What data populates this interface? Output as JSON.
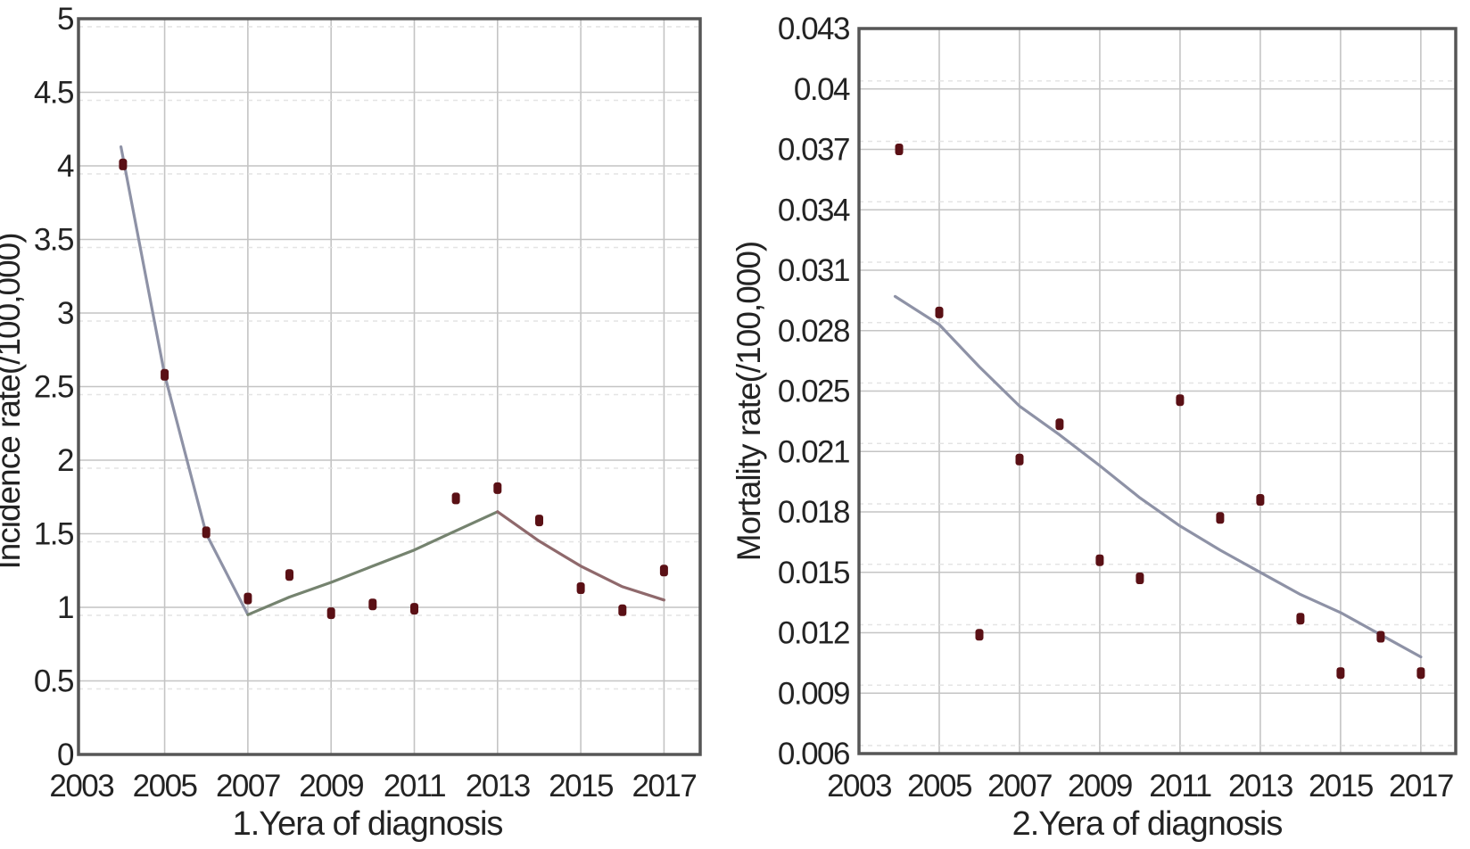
{
  "page": {
    "background": "#ffffff"
  },
  "theme": {
    "point_color": "#5a1015",
    "axis_color": "#565656",
    "grid_color": "#c4c4c4",
    "grid_echo_color": "#e4e4e4",
    "text_color": "#232323",
    "trend_blue": "#8e92a6",
    "trend_green": "#75836f",
    "trend_red": "#8f696c"
  },
  "chart_data": [
    {
      "id": "incidence",
      "type": "scatter",
      "title": "",
      "xlabel": "1.Yera of diagnosis",
      "ylabel": "Incidence rate(/100,000)",
      "x_ticks": [
        2003,
        2005,
        2007,
        2009,
        2011,
        2013,
        2015,
        2017
      ],
      "x_tick_labels": [
        "2003",
        "2005",
        "2007",
        "2009",
        "2011",
        "2013",
        "2015",
        "2017"
      ],
      "y_ticks": [
        0,
        0.5,
        1,
        1.5,
        2,
        2.5,
        3,
        3.5,
        4,
        4.5,
        5
      ],
      "y_tick_labels": [
        "0",
        "0.5",
        "1",
        "1.5",
        "2",
        "2.5",
        "3",
        "3.5",
        "4",
        "4.5",
        "5"
      ],
      "xlim": [
        2002.93,
        2017.87
      ],
      "ylim": [
        0,
        5
      ],
      "y_scale": "linear",
      "grid": true,
      "legend": null,
      "x": [
        2004,
        2005,
        2006,
        2007,
        2008,
        2009,
        2010,
        2011,
        2012,
        2013,
        2014,
        2015,
        2016,
        2017
      ],
      "values": [
        4.01,
        2.58,
        1.51,
        1.06,
        1.22,
        0.96,
        1.02,
        0.99,
        1.74,
        1.81,
        1.59,
        1.13,
        0.98,
        1.25
      ],
      "trend_lines": [
        {
          "name": "decline-2004-2007",
          "color": "#8e92a6",
          "points": [
            [
              2003.95,
              4.13
            ],
            [
              2005,
              2.58
            ],
            [
              2006,
              1.5
            ],
            [
              2007,
              0.95
            ]
          ]
        },
        {
          "name": "rise-2007-2013",
          "color": "#75836f",
          "points": [
            [
              2007,
              0.95
            ],
            [
              2008,
              1.07
            ],
            [
              2009,
              1.17
            ],
            [
              2010,
              1.28
            ],
            [
              2011,
              1.39
            ],
            [
              2012,
              1.52
            ],
            [
              2013,
              1.65
            ]
          ]
        },
        {
          "name": "decline-2013-2017",
          "color": "#8f696c",
          "points": [
            [
              2013,
              1.65
            ],
            [
              2014,
              1.45
            ],
            [
              2015,
              1.28
            ],
            [
              2016,
              1.14
            ],
            [
              2017,
              1.05
            ]
          ]
        }
      ]
    },
    {
      "id": "mortality",
      "type": "scatter",
      "title": "",
      "xlabel": "2.Yera of diagnosis",
      "ylabel": "Mortality rate(/100,000)",
      "x_ticks": [
        2003,
        2005,
        2007,
        2009,
        2011,
        2013,
        2015,
        2017
      ],
      "x_tick_labels": [
        "2003",
        "2005",
        "2007",
        "2009",
        "2011",
        "2013",
        "2015",
        "2017"
      ],
      "y_ticks": [
        0.006,
        0.009,
        0.012,
        0.015,
        0.018,
        0.021,
        0.025,
        0.028,
        0.031,
        0.034,
        0.037,
        0.04,
        0.043
      ],
      "y_tick_labels": [
        "0.006",
        "0.009",
        "0.012",
        "0.015",
        "0.018",
        "0.021",
        "0.025",
        "0.028",
        "0.031",
        "0.034",
        "0.037",
        "0.04",
        "0.043"
      ],
      "xlim": [
        2003,
        2017.87
      ],
      "ylim": [
        0.006,
        0.043
      ],
      "y_scale": "tick-even",
      "grid": true,
      "legend": null,
      "x": [
        2004,
        2005,
        2006,
        2007,
        2008,
        2009,
        2010,
        2011,
        2012,
        2013,
        2014,
        2015,
        2016,
        2017
      ],
      "values": [
        0.037,
        0.0289,
        0.0119,
        0.0206,
        0.0228,
        0.0156,
        0.0147,
        0.0244,
        0.0177,
        0.0186,
        0.0127,
        0.01,
        0.0118,
        0.01
      ],
      "trend_lines": [
        {
          "name": "lowess-decline-2004-2017",
          "color": "#8e92a6",
          "points": [
            [
              2003.9,
              0.0297
            ],
            [
              2005,
              0.0283
            ],
            [
              2006,
              0.0262
            ],
            [
              2007,
              0.024
            ],
            [
              2008,
              0.0221
            ],
            [
              2009,
              0.0203
            ],
            [
              2010,
              0.0187
            ],
            [
              2011,
              0.0173
            ],
            [
              2012,
              0.0161
            ],
            [
              2013,
              0.015
            ],
            [
              2014,
              0.0139
            ],
            [
              2015,
              0.013
            ],
            [
              2016,
              0.0119
            ],
            [
              2017,
              0.0108
            ]
          ]
        }
      ]
    }
  ]
}
